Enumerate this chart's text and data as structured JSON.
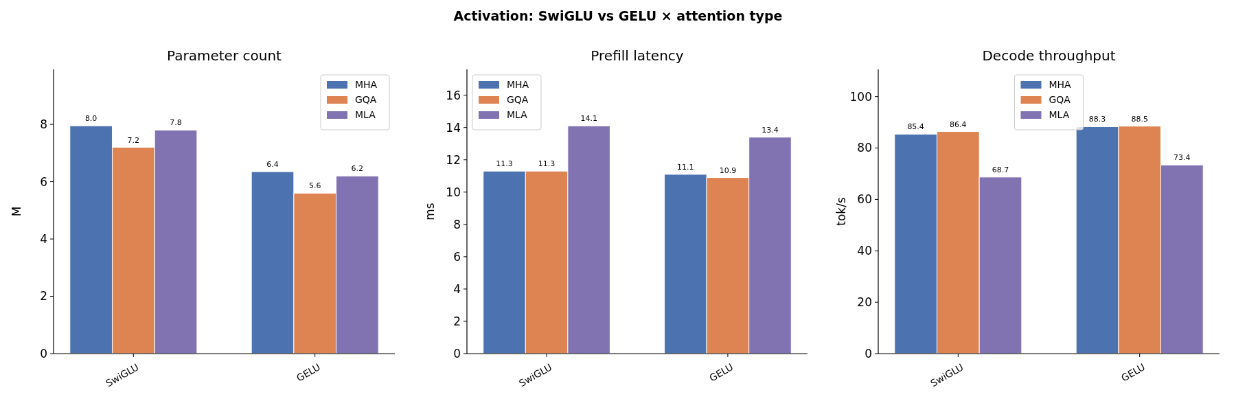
{
  "chart_data": [
    {
      "type": "other",
      "title": "Activation: SwiGLU vs GELU × attention type"
    },
    {
      "type": "bar",
      "title": "Parameter count",
      "ylabel": "M",
      "categories": [
        "SwiGLU",
        "GELU"
      ],
      "ylim": [
        0,
        9.92
      ],
      "yticks": [
        0,
        2,
        4,
        6,
        8
      ],
      "legend": "top right",
      "series": [
        {
          "name": "MHA",
          "color": "#4c72b0",
          "values": [
            7.95,
            6.35
          ],
          "value_labels": [
            "8.0",
            "6.4"
          ]
        },
        {
          "name": "GQA",
          "color": "#dd8452",
          "values": [
            7.2,
            5.6
          ],
          "value_labels": [
            "7.2",
            "5.6"
          ]
        },
        {
          "name": "MLA",
          "color": "#8172b2",
          "values": [
            7.8,
            6.2
          ],
          "value_labels": [
            "7.8",
            "6.2"
          ]
        }
      ]
    },
    {
      "type": "bar",
      "title": "Prefill latency",
      "ylabel": "ms",
      "categories": [
        "SwiGLU",
        "GELU"
      ],
      "ylim": [
        0,
        17.6
      ],
      "yticks": [
        0,
        2,
        4,
        6,
        8,
        10,
        12,
        14,
        16
      ],
      "legend": "top left",
      "series": [
        {
          "name": "MHA",
          "color": "#4c72b0",
          "values": [
            11.3,
            11.1
          ],
          "value_labels": [
            "11.3",
            "11.1"
          ]
        },
        {
          "name": "GQA",
          "color": "#dd8452",
          "values": [
            11.3,
            10.9
          ],
          "value_labels": [
            "11.3",
            "10.9"
          ]
        },
        {
          "name": "MLA",
          "color": "#8172b2",
          "values": [
            14.1,
            13.4
          ],
          "value_labels": [
            "14.1",
            "13.4"
          ]
        }
      ]
    },
    {
      "type": "bar",
      "title": "Decode throughput",
      "ylabel": "tok/s",
      "categories": [
        "SwiGLU",
        "GELU"
      ],
      "ylim": [
        0,
        110.6
      ],
      "yticks": [
        0,
        20,
        40,
        60,
        80,
        100
      ],
      "legend": "top",
      "series": [
        {
          "name": "MHA",
          "color": "#4c72b0",
          "values": [
            85.4,
            88.3
          ],
          "value_labels": [
            "85.4",
            "88.3"
          ]
        },
        {
          "name": "GQA",
          "color": "#dd8452",
          "values": [
            86.4,
            88.5
          ],
          "value_labels": [
            "86.4",
            "88.5"
          ]
        },
        {
          "name": "MLA",
          "color": "#8172b2",
          "values": [
            68.7,
            73.4
          ],
          "value_labels": [
            "68.7",
            "73.4"
          ]
        }
      ]
    }
  ]
}
